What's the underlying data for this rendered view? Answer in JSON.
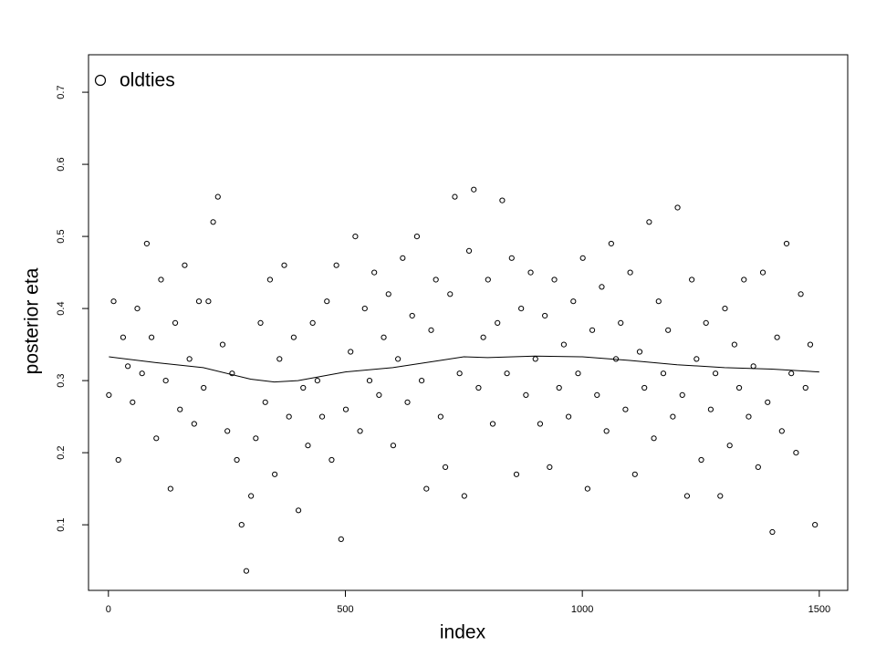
{
  "chart_data": {
    "type": "scatter",
    "x_label": "index",
    "y_label": "posterior eta",
    "xlim": [
      -42,
      1560
    ],
    "ylim": [
      0.009,
      0.752
    ],
    "xticks": [
      0,
      500,
      1000,
      1500
    ],
    "yticks": [
      0.1,
      0.2,
      0.3,
      0.4,
      0.5,
      0.6,
      0.7
    ],
    "grid": false,
    "legend": "top-left",
    "series": [
      {
        "name": "oldties",
        "color": "#000000",
        "x": [
          1,
          11,
          21,
          31,
          41,
          51,
          61,
          71,
          81,
          91,
          101,
          111,
          121,
          131,
          141,
          151,
          161,
          171,
          181,
          191,
          201,
          211,
          221,
          231,
          241,
          251,
          261,
          271,
          281,
          291,
          301,
          311,
          321,
          331,
          341,
          351,
          361,
          371,
          381,
          391,
          401,
          411,
          421,
          431,
          441,
          451,
          461,
          471,
          481,
          491,
          501,
          511,
          521,
          531,
          541,
          551,
          561,
          571,
          581,
          591,
          601,
          611,
          621,
          631,
          641,
          651,
          661,
          671,
          681,
          691,
          701,
          711,
          721,
          731,
          741,
          751,
          761,
          771,
          781,
          791,
          801,
          811,
          821,
          831,
          841,
          851,
          861,
          871,
          881,
          891,
          901,
          911,
          921,
          931,
          941,
          951,
          961,
          971,
          981,
          991,
          1001,
          1011,
          1021,
          1031,
          1041,
          1051,
          1061,
          1071,
          1081,
          1091,
          1101,
          1111,
          1121,
          1131,
          1141,
          1151,
          1161,
          1171,
          1181,
          1191,
          1201,
          1211,
          1221,
          1231,
          1241,
          1251,
          1261,
          1271,
          1281,
          1291,
          1301,
          1311,
          1321,
          1331,
          1341,
          1351,
          1361,
          1371,
          1381,
          1391,
          1401,
          1411,
          1421,
          1431,
          1441,
          1451,
          1461,
          1471,
          1481,
          1491
        ],
        "values": [
          0.28,
          0.41,
          0.19,
          0.36,
          0.32,
          0.27,
          0.4,
          0.31,
          0.49,
          0.36,
          0.22,
          0.44,
          0.3,
          0.15,
          0.38,
          0.26,
          0.46,
          0.33,
          0.24,
          0.41,
          0.29,
          0.41,
          0.52,
          0.555,
          0.35,
          0.23,
          0.31,
          0.19,
          0.1,
          0.036,
          0.14,
          0.22,
          0.38,
          0.27,
          0.44,
          0.17,
          0.33,
          0.46,
          0.25,
          0.36,
          0.12,
          0.29,
          0.21,
          0.38,
          0.3,
          0.25,
          0.41,
          0.19,
          0.46,
          0.08,
          0.26,
          0.34,
          0.5,
          0.23,
          0.4,
          0.3,
          0.45,
          0.28,
          0.36,
          0.42,
          0.21,
          0.33,
          0.47,
          0.27,
          0.39,
          0.5,
          0.3,
          0.15,
          0.37,
          0.44,
          0.25,
          0.18,
          0.42,
          0.555,
          0.31,
          0.14,
          0.48,
          0.565,
          0.29,
          0.36,
          0.44,
          0.24,
          0.38,
          0.55,
          0.31,
          0.47,
          0.17,
          0.4,
          0.28,
          0.45,
          0.33,
          0.24,
          0.39,
          0.18,
          0.44,
          0.29,
          0.35,
          0.25,
          0.41,
          0.31,
          0.47,
          0.15,
          0.37,
          0.28,
          0.43,
          0.23,
          0.49,
          0.33,
          0.38,
          0.26,
          0.45,
          0.17,
          0.34,
          0.29,
          0.52,
          0.22,
          0.41,
          0.31,
          0.37,
          0.25,
          0.54,
          0.28,
          0.14,
          0.44,
          0.33,
          0.19,
          0.38,
          0.26,
          0.31,
          0.14,
          0.4,
          0.21,
          0.35,
          0.29,
          0.44,
          0.25,
          0.32,
          0.18,
          0.45,
          0.27,
          0.09,
          0.36,
          0.23,
          0.49,
          0.31,
          0.2,
          0.42,
          0.29,
          0.35,
          0.1
        ]
      }
    ],
    "smooth": {
      "color": "#000000",
      "x": [
        1,
        100,
        200,
        300,
        350,
        400,
        500,
        600,
        700,
        750,
        800,
        900,
        1000,
        1100,
        1200,
        1300,
        1400,
        1500
      ],
      "values": [
        0.333,
        0.325,
        0.318,
        0.302,
        0.298,
        0.3,
        0.312,
        0.318,
        0.328,
        0.333,
        0.332,
        0.334,
        0.333,
        0.328,
        0.322,
        0.318,
        0.316,
        0.312
      ]
    }
  }
}
